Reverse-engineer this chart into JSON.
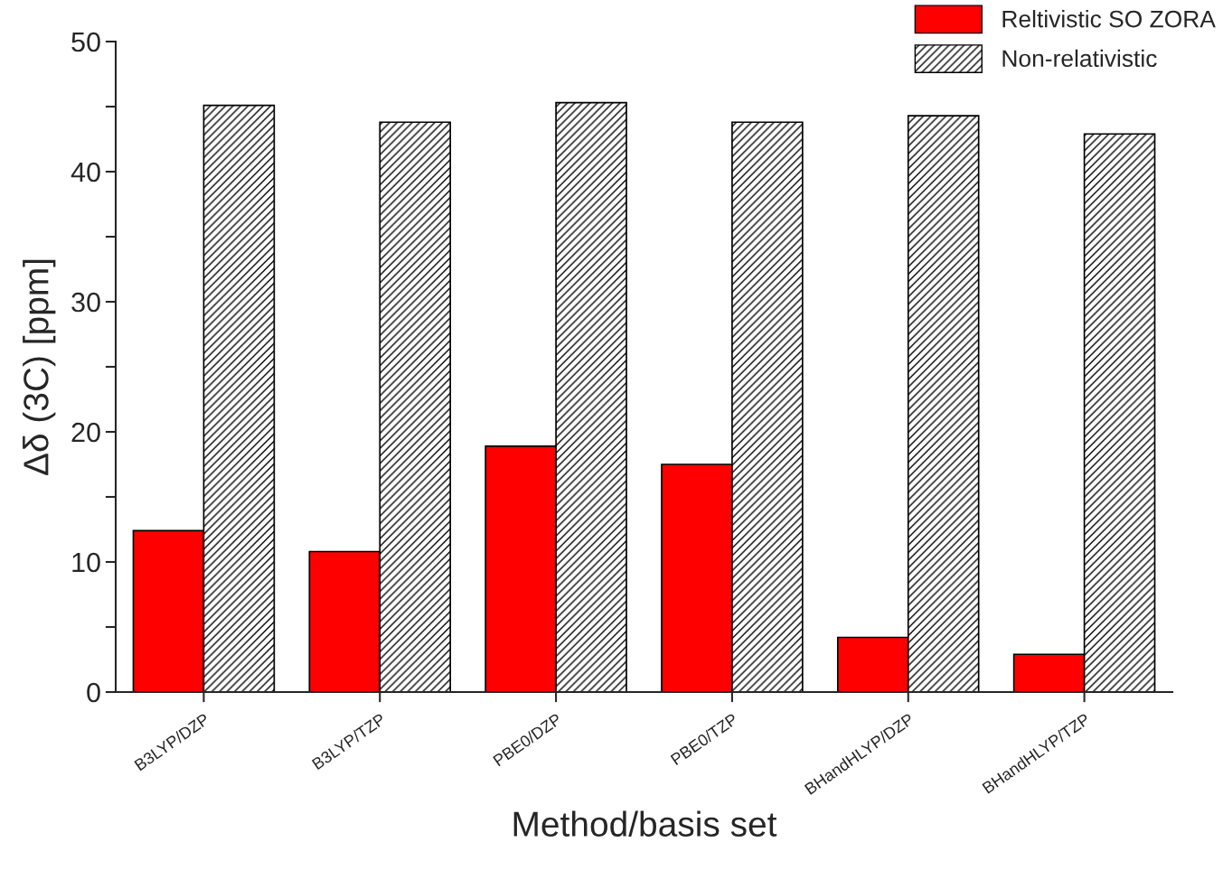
{
  "chart_data": {
    "type": "bar",
    "xlabel": "Method/basis set",
    "ylabel": "Δδ (3C) [ppm]",
    "categories": [
      "B3LYP/DZP",
      "B3LYP/TZP",
      "PBE0/DZP",
      "PBE0/TZP",
      "BHandHLYP/DZP",
      "BHandHLYP/TZP"
    ],
    "series": [
      {
        "name": "Reltivistic SO ZORA",
        "color": "#ff0000",
        "values": [
          12.4,
          10.8,
          18.9,
          17.5,
          4.2,
          2.9
        ]
      },
      {
        "name": "Non-relativistic",
        "color": "#000000",
        "values": [
          45.1,
          43.8,
          45.3,
          43.8,
          44.3,
          42.9
        ]
      }
    ],
    "ylim": [
      0,
      50
    ],
    "yticks": [
      0,
      {
        "value": 5,
        "label": null
      },
      10,
      {
        "value": 15,
        "label": null
      },
      20,
      {
        "value": 25,
        "label": null
      },
      30,
      {
        "value": 35,
        "label": null
      },
      40,
      {
        "value": 45,
        "label": null
      },
      50
    ],
    "grid": false,
    "legend": "top right"
  }
}
